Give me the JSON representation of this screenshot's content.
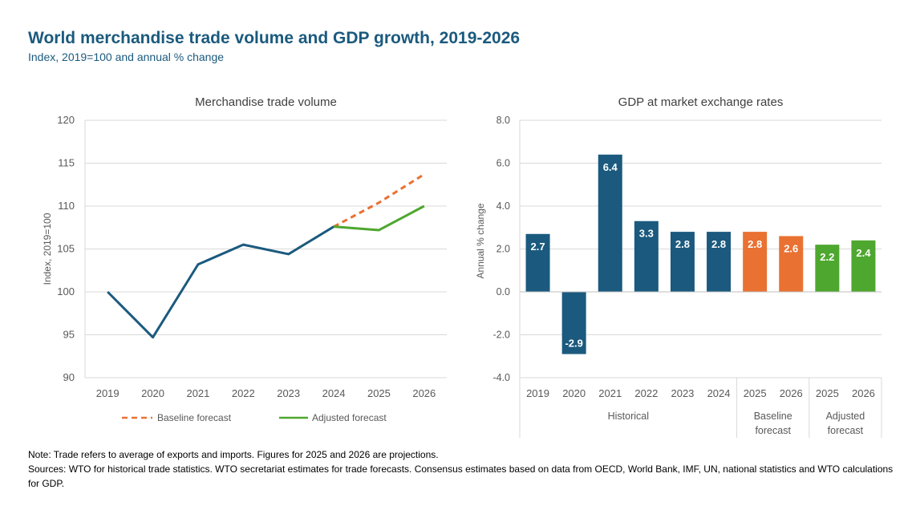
{
  "title": "World merchandise trade volume and GDP growth, 2019-2026",
  "subtitle": "Index, 2019=100 and annual % change",
  "colors": {
    "navy": "#1b5a7e",
    "orange": "#e97132",
    "green": "#4ea72e",
    "grid": "#d9d9d9",
    "axis_text": "#595959"
  },
  "chart_data": [
    {
      "type": "line",
      "title": "Merchandise trade volume",
      "ylabel": "Index, 2019=100",
      "xlabel": "",
      "ylim": [
        90,
        120
      ],
      "yticks": [
        "90",
        "95",
        "100",
        "105",
        "110",
        "115",
        "120"
      ],
      "x": [
        "2019",
        "2020",
        "2021",
        "2022",
        "2023",
        "2024",
        "2025",
        "2026"
      ],
      "series": [
        {
          "name": "Historical",
          "x": [
            "2019",
            "2020",
            "2021",
            "2022",
            "2023",
            "2024"
          ],
          "values": [
            100,
            94.7,
            103.2,
            105.5,
            104.4,
            107.6
          ]
        },
        {
          "name": "Baseline forecast",
          "x": [
            "2024",
            "2025",
            "2026"
          ],
          "values": [
            107.6,
            110.4,
            113.7
          ]
        },
        {
          "name": "Adjusted forecast",
          "x": [
            "2024",
            "2025",
            "2026"
          ],
          "values": [
            107.6,
            107.2,
            110.0
          ]
        }
      ],
      "legend": [
        "Baseline forecast",
        "Adjusted forecast"
      ],
      "legend_position": "bottom"
    },
    {
      "type": "bar",
      "title": "GDP at market exchange rates",
      "ylabel": "Annual % change",
      "ylim": [
        -4.0,
        8.0
      ],
      "yticks": [
        "-4.0",
        "-2.0",
        "0.0",
        "2.0",
        "4.0",
        "6.0",
        "8.0"
      ],
      "categories": [
        "2019",
        "2020",
        "2021",
        "2022",
        "2023",
        "2024",
        "2025",
        "2026",
        "2025",
        "2026"
      ],
      "values": [
        2.7,
        -2.9,
        6.4,
        3.3,
        2.8,
        2.8,
        2.8,
        2.6,
        2.2,
        2.4
      ],
      "labels": [
        "2.7",
        "-2.9",
        "6.4",
        "3.3",
        "2.8",
        "2.8",
        "2.8",
        "2.6",
        "2.2",
        "2.4"
      ],
      "groups": [
        {
          "name": "Historical",
          "lines": [
            "Historical"
          ],
          "count": 6
        },
        {
          "name": "Baseline forecast",
          "lines": [
            "Baseline",
            "forecast"
          ],
          "count": 2
        },
        {
          "name": "Adjusted forecast",
          "lines": [
            "Adjusted",
            "forecast"
          ],
          "count": 2
        }
      ]
    }
  ],
  "footnotes": {
    "note": "Note: Trade refers to average of exports and imports. Figures for 2025 and 2026 are projections.",
    "sources": "Sources: WTO for historical trade statistics. WTO secretariat estimates for trade forecasts.  Consensus estimates based on data from OECD, World Bank, IMF, UN, national statistics and WTO calculations for GDP."
  }
}
